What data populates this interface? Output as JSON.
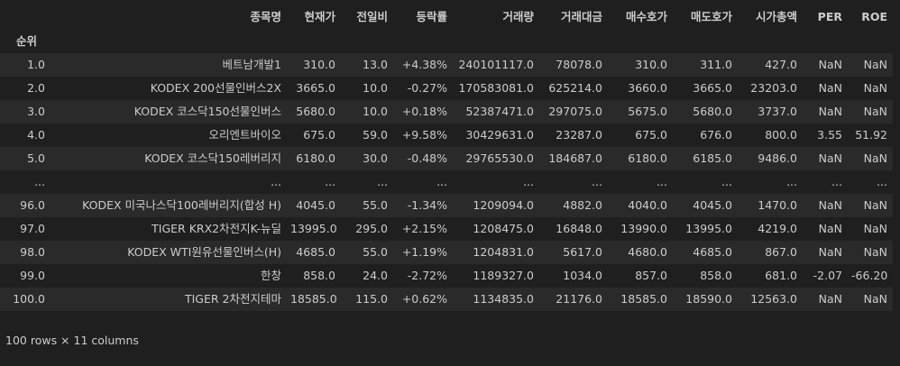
{
  "table": {
    "columns": [
      "종목명",
      "현재가",
      "전일비",
      "등락률",
      "거래량",
      "거래대금",
      "매수호가",
      "매도호가",
      "시가총액",
      "PER",
      "ROE"
    ],
    "index_name": "순위",
    "rows": [
      [
        "1.0",
        "베트남개발1",
        "310.0",
        "13.0",
        "+4.38%",
        "240101117.0",
        "78078.0",
        "310.0",
        "311.0",
        "427.0",
        "NaN",
        "NaN"
      ],
      [
        "2.0",
        "KODEX 200선물인버스2X",
        "3665.0",
        "10.0",
        "-0.27%",
        "170583081.0",
        "625214.0",
        "3660.0",
        "3665.0",
        "23203.0",
        "NaN",
        "NaN"
      ],
      [
        "3.0",
        "KODEX 코스닥150선물인버스",
        "5680.0",
        "10.0",
        "+0.18%",
        "52387471.0",
        "297075.0",
        "5675.0",
        "5680.0",
        "3737.0",
        "NaN",
        "NaN"
      ],
      [
        "4.0",
        "오리엔트바이오",
        "675.0",
        "59.0",
        "+9.58%",
        "30429631.0",
        "23287.0",
        "675.0",
        "676.0",
        "800.0",
        "3.55",
        "51.92"
      ],
      [
        "5.0",
        "KODEX 코스닥150레버리지",
        "6180.0",
        "30.0",
        "-0.48%",
        "29765530.0",
        "184687.0",
        "6180.0",
        "6185.0",
        "9486.0",
        "NaN",
        "NaN"
      ],
      [
        "...",
        "...",
        "...",
        "...",
        "...",
        "...",
        "...",
        "...",
        "...",
        "...",
        "...",
        "..."
      ],
      [
        "96.0",
        "KODEX 미국나스닥100레버리지(합성 H)",
        "4045.0",
        "55.0",
        "-1.34%",
        "1209094.0",
        "4882.0",
        "4040.0",
        "4045.0",
        "1470.0",
        "NaN",
        "NaN"
      ],
      [
        "97.0",
        "TIGER KRX2차전지K-뉴딜",
        "13995.0",
        "295.0",
        "+2.15%",
        "1208475.0",
        "16848.0",
        "13990.0",
        "13995.0",
        "4219.0",
        "NaN",
        "NaN"
      ],
      [
        "98.0",
        "KODEX WTI원유선물인버스(H)",
        "4685.0",
        "55.0",
        "+1.19%",
        "1204831.0",
        "5617.0",
        "4680.0",
        "4685.0",
        "867.0",
        "NaN",
        "NaN"
      ],
      [
        "99.0",
        "한창",
        "858.0",
        "24.0",
        "-2.72%",
        "1189327.0",
        "1034.0",
        "857.0",
        "858.0",
        "681.0",
        "-2.07",
        "-66.20"
      ],
      [
        "100.0",
        "TIGER 2차전지테마",
        "18585.0",
        "115.0",
        "+0.62%",
        "1134835.0",
        "21176.0",
        "18585.0",
        "18590.0",
        "12563.0",
        "NaN",
        "NaN"
      ]
    ]
  },
  "footer": "100 rows × 11 columns"
}
